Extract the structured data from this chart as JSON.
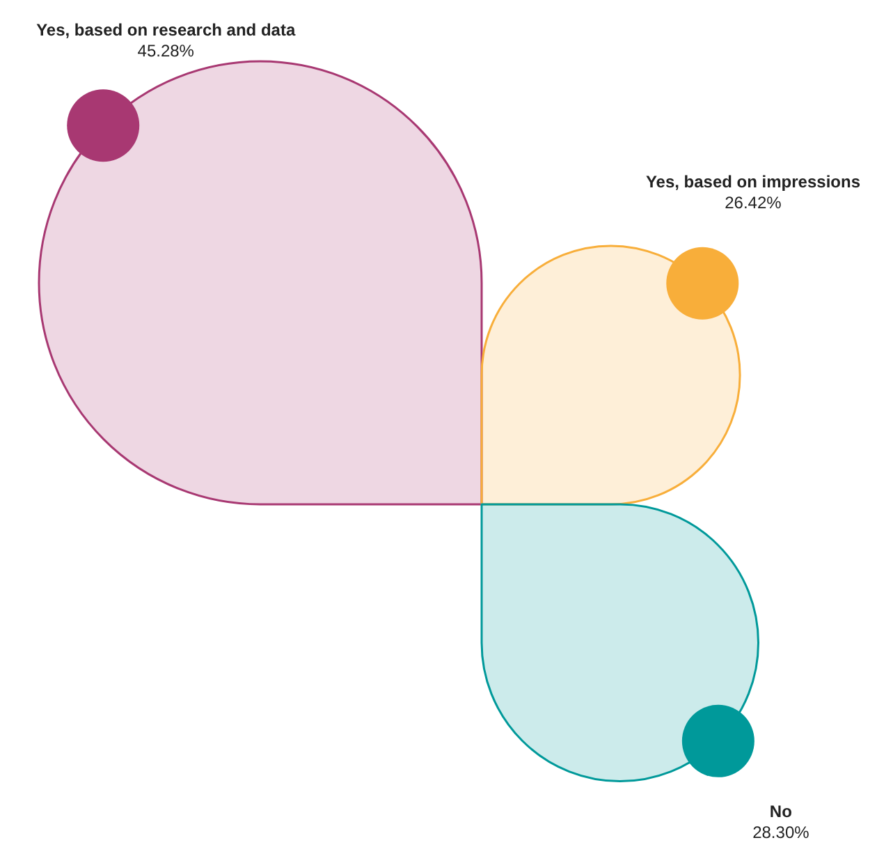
{
  "chart_data": {
    "type": "other",
    "categories": [
      "Yes, based on research and data",
      "Yes, based on impressions",
      "No"
    ],
    "values": [
      45.28,
      26.42,
      28.3
    ],
    "value_labels": [
      "45.28%",
      "26.42%",
      "28.30%"
    ],
    "colors": [
      "#a83872",
      "#f8ae3a",
      "#00999a"
    ]
  }
}
